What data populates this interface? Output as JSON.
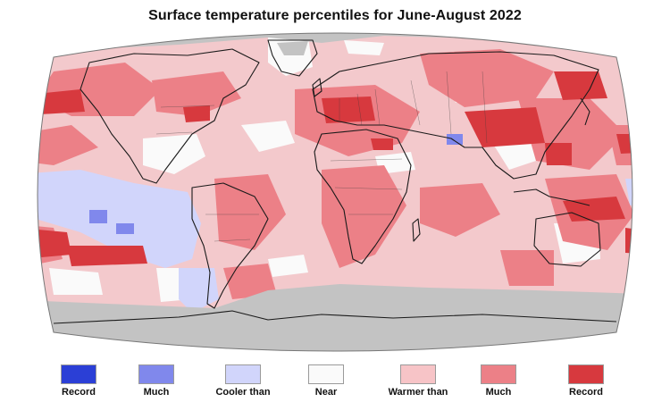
{
  "title": "Surface temperature percentiles for June-August 2022",
  "colors": {
    "no_data": "#c3c3c3",
    "ocean_background": "#f3c9cc",
    "land_outline": "#1a1a1a",
    "map_border": "#777777"
  },
  "legend": [
    {
      "key": "record-cold",
      "label": "Record",
      "color": "#2b3fd6"
    },
    {
      "key": "much-cooler",
      "label": "Much",
      "color": "#8088ec"
    },
    {
      "key": "cooler",
      "label": "Cooler than",
      "color": "#d1d5fb"
    },
    {
      "key": "near",
      "label": "Near",
      "color": "#fafafa"
    },
    {
      "key": "warmer",
      "label": "Warmer than",
      "color": "#f7c4c7"
    },
    {
      "key": "much-warmer",
      "label": "Much",
      "color": "#ec8087"
    },
    {
      "key": "record-warm",
      "label": "Record",
      "color": "#d7393e"
    }
  ]
}
